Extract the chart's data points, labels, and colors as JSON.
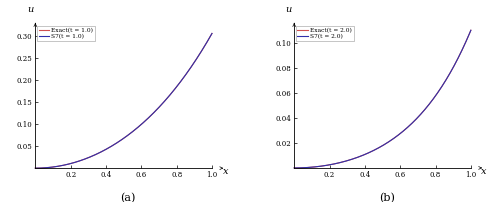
{
  "title_a": "(a)",
  "title_b": "(b)",
  "xlabel": "x",
  "ylabel": "u",
  "xlim_a": [
    -0.03,
    1.08
  ],
  "xlim_b": [
    -0.03,
    1.08
  ],
  "ylim_a": [
    -0.008,
    0.335
  ],
  "ylim_b": [
    -0.003,
    0.118
  ],
  "t_a": 1.0,
  "t_b": 2.0,
  "legend_exact_a": "Exact(t = 1.0)",
  "legend_s7_a": "S7(t = 1.0)",
  "legend_exact_b": "Exact(t = 2.0)",
  "legend_s7_b": "S7(t = 2.0)",
  "color_exact": "#d05050",
  "color_s7": "#3030aa",
  "bg_color": "#ffffff",
  "yticks_a": [
    0.05,
    0.1,
    0.15,
    0.2,
    0.25,
    0.3
  ],
  "yticks_b": [
    0.02,
    0.04,
    0.06,
    0.08,
    0.1
  ],
  "xticks": [
    0.2,
    0.4,
    0.6,
    0.8,
    1.0
  ],
  "exact_scale_a": 0.305,
  "exact_scale_b": 0.11,
  "s7_mid_diff_a": 0.022,
  "s7_mid_diff_b": 0.008
}
